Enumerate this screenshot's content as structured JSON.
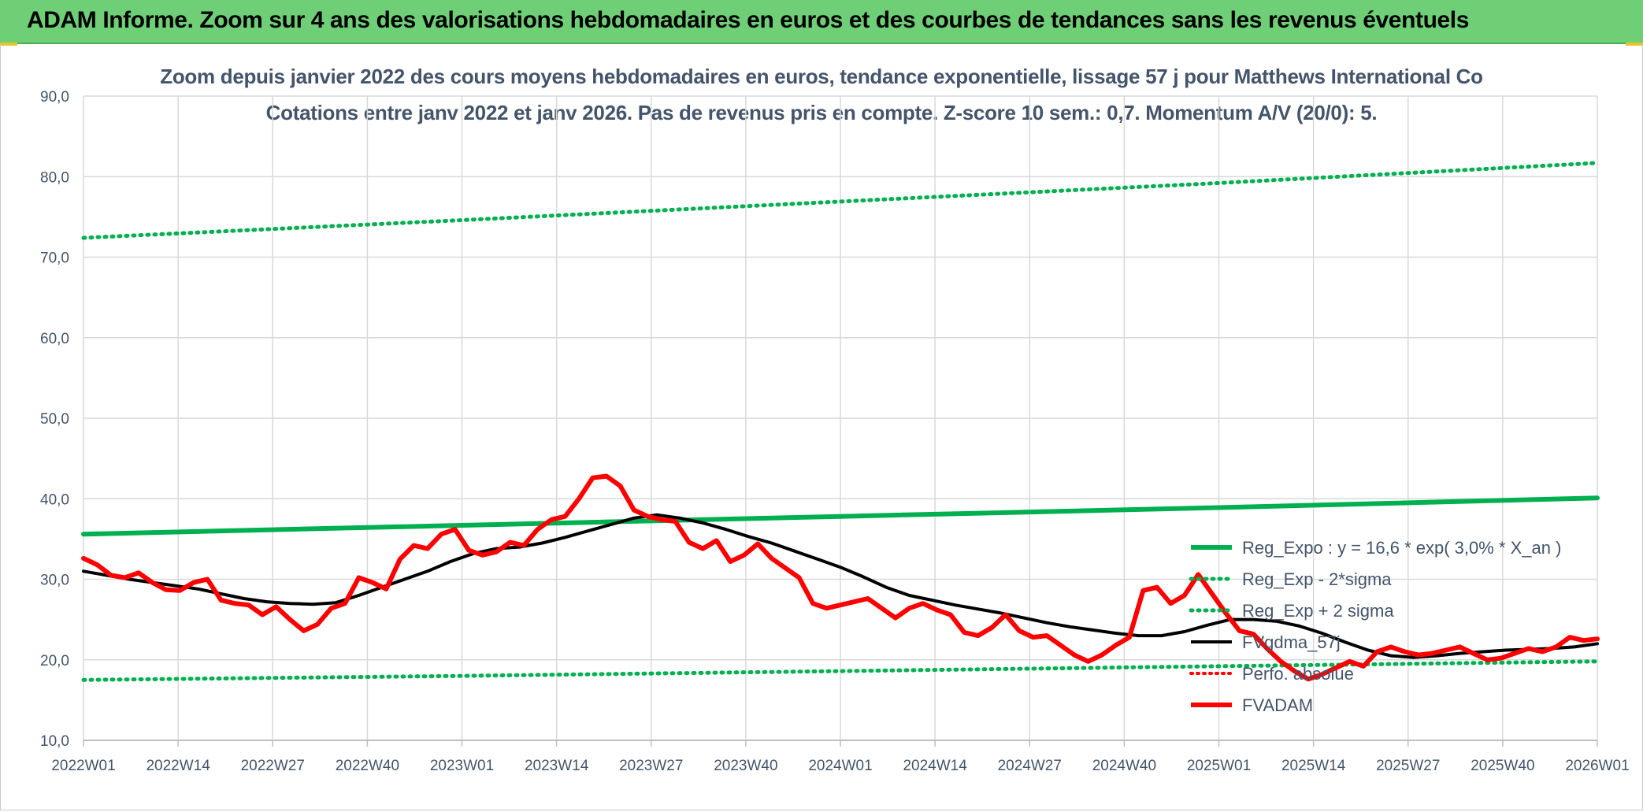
{
  "banner": {
    "title": "ADAM Informe. Zoom sur 4 ans des valorisations hebdomadaires en euros et des courbes de tendances sans les revenus éventuels"
  },
  "colors": {
    "banner_bg": "#6fcf77",
    "regression": "#00b050",
    "smoothed": "#000000",
    "price": "#ff0000",
    "text": "#44546a",
    "grid": "#d9d9d9"
  },
  "chart_data": {
    "type": "line",
    "title": "Zoom depuis janvier 2022 des cours moyens hebdomadaires en euros, tendance exponentielle, lissage 57 j pour Matthews International Co",
    "subtitle": "Cotations entre janv 2022 et janv 2026. Pas de revenus pris en compte. Z-score 10 sem.: 0,7. Momentum A/V (20/0): 5.",
    "ylim": [
      10,
      90
    ],
    "y_ticks": [
      "10,0",
      "20,0",
      "30,0",
      "40,0",
      "50,0",
      "60,0",
      "70,0",
      "80,0",
      "90,0"
    ],
    "x_ticks": [
      "2022W01",
      "2022W14",
      "2022W27",
      "2022W40",
      "2023W01",
      "2023W14",
      "2023W27",
      "2023W40",
      "2024W01",
      "2024W14",
      "2024W27",
      "2024W40",
      "2025W01",
      "2025W14",
      "2025W27",
      "2025W40",
      "2026W01"
    ],
    "grid": true,
    "legend_position": "bottom-right",
    "series": [
      {
        "name": "Reg_Expo : y = 16,6 * exp( 3,0% *  X_an )",
        "style": "solid-green",
        "values": [
          35.6,
          36.7,
          37.8,
          38.9,
          40.1
        ]
      },
      {
        "name": "Reg_Exp - 2*sigma",
        "style": "dotted-green",
        "values": [
          17.5,
          18.0,
          18.6,
          19.2,
          19.8
        ]
      },
      {
        "name": "Reg_Exp + 2 sigma",
        "style": "dotted-green",
        "values": [
          72.4,
          74.6,
          76.9,
          79.2,
          81.7
        ]
      },
      {
        "name": "FVgdma_57j",
        "style": "solid-black",
        "values": [
          31.0,
          30.5,
          30.0,
          29.6,
          29.2,
          28.8,
          28.2,
          27.6,
          27.2,
          27.0,
          26.9,
          27.1,
          28.0,
          29.0,
          30.0,
          31.0,
          32.2,
          33.2,
          33.8,
          34.0,
          34.5,
          35.2,
          36.0,
          36.8,
          37.6,
          38.0,
          37.6,
          37.0,
          36.2,
          35.3,
          34.5,
          33.5,
          32.5,
          31.5,
          30.3,
          29.0,
          28.0,
          27.4,
          26.8,
          26.3,
          25.8,
          25.2,
          24.6,
          24.1,
          23.7,
          23.3,
          23.0,
          23.0,
          23.5,
          24.3,
          25.0,
          25.0,
          24.8,
          24.2,
          23.3,
          22.2,
          21.2,
          20.5,
          20.3,
          20.5,
          20.8,
          21.0,
          21.2,
          21.3,
          21.4,
          21.6,
          22.0
        ]
      },
      {
        "name": "Perfo. absolue",
        "style": "dotted-red",
        "values": []
      },
      {
        "name": "FVADAM",
        "style": "thick-red",
        "values": [
          32.6,
          31.8,
          30.5,
          30.2,
          30.8,
          29.6,
          28.7,
          28.6,
          29.6,
          30.0,
          27.4,
          27.0,
          26.8,
          25.6,
          26.6,
          25.0,
          23.6,
          24.4,
          26.4,
          27.0,
          30.2,
          29.6,
          28.8,
          32.5,
          34.2,
          33.8,
          35.6,
          36.2,
          33.6,
          33.0,
          33.4,
          34.6,
          34.2,
          36.2,
          37.4,
          37.8,
          40.0,
          42.6,
          42.8,
          41.6,
          38.6,
          37.8,
          37.4,
          37.2,
          34.6,
          33.8,
          34.8,
          32.2,
          33.0,
          34.4,
          32.6,
          31.4,
          30.2,
          27.0,
          26.4,
          26.8,
          27.2,
          27.6,
          26.4,
          25.2,
          26.4,
          27.0,
          26.2,
          25.6,
          23.4,
          23.0,
          24.0,
          25.6,
          23.6,
          22.8,
          23.0,
          21.8,
          20.6,
          19.8,
          20.6,
          21.8,
          22.8,
          28.6,
          29.0,
          27.0,
          28.0,
          30.6,
          28.2,
          25.8,
          23.6,
          23.2,
          21.4,
          19.8,
          18.6,
          17.6,
          18.2,
          19.0,
          19.8,
          19.2,
          21.0,
          21.6,
          21.0,
          20.6,
          20.8,
          21.2,
          21.6,
          20.8,
          20.0,
          20.2,
          20.8,
          21.4,
          21.0,
          21.6,
          22.8,
          22.4,
          22.6
        ]
      }
    ]
  }
}
